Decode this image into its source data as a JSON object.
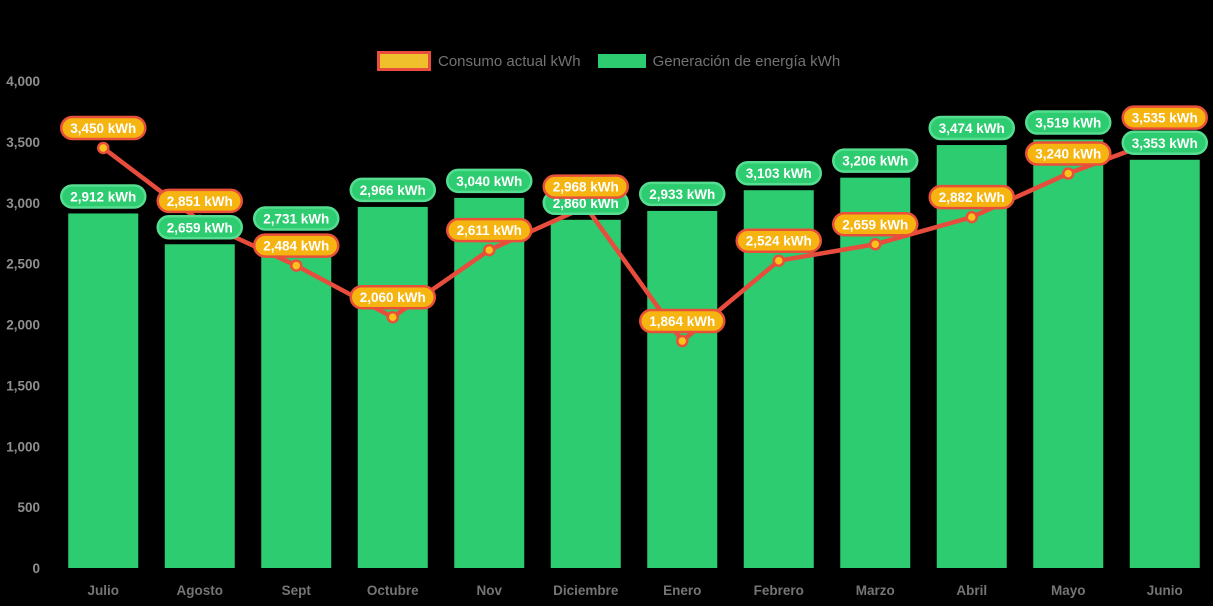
{
  "legend": {
    "consumption_label": "Consumo actual kWh",
    "generation_label": "Generación de energía kWh"
  },
  "y_axis": {
    "tick_labels": [
      "0",
      "500",
      "1,000",
      "1,500",
      "2,000",
      "2,500",
      "3,000",
      "3,500",
      "4,000"
    ],
    "step": 500,
    "min": 0,
    "max": 4000
  },
  "chart_data": {
    "type": "bar",
    "subtype": "bars-with-line-overlay",
    "title": "",
    "unit": "kWh",
    "categories": [
      "Julio",
      "Agosto",
      "Sept",
      "Octubre",
      "Nov",
      "Diciembre",
      "Enero",
      "Febrero",
      "Marzo",
      "Abril",
      "Mayo",
      "Junio"
    ],
    "series": [
      {
        "name": "Consumo actual kWh",
        "type": "line",
        "color": "#e74c3c",
        "values": [
          3450,
          2851,
          2484,
          2060,
          2611,
          2968,
          1864,
          2524,
          2659,
          2882,
          3240,
          3535
        ],
        "labels": [
          "3,450 kWh",
          "2,851 kWh",
          "2,484 kWh",
          "2,060 kWh",
          "2,611 kWh",
          "2,968 kWh",
          "1,864 kWh",
          "2,524 kWh",
          "2,659 kWh",
          "2,882 kWh",
          "3,240 kWh",
          "3,535 kWh"
        ]
      },
      {
        "name": "Generación de energía kWh",
        "type": "bar",
        "color": "#2ecc71",
        "values": [
          2912,
          2659,
          2731,
          2966,
          3040,
          2860,
          2933,
          3103,
          3206,
          3474,
          3519,
          3353
        ],
        "labels": [
          "2,912 kWh",
          "2,659 kWh",
          "2,731 kWh",
          "2,966 kWh",
          "3,040 kWh",
          "2,860 kWh",
          "2,933 kWh",
          "3,103 kWh",
          "3,206 kWh",
          "3,474 kWh",
          "3,519 kWh",
          "3,353 kWh"
        ]
      }
    ],
    "ylim": [
      0,
      4000
    ],
    "grid": false,
    "legend_position": "top",
    "data_label_suffix": " kWh"
  },
  "colors": {
    "background": "#000000",
    "bar_green": "#2ecc71",
    "green_pill_fill": "#2ecc71",
    "green_pill_border": "#55dd90",
    "line_red": "#e74c3c",
    "point_fill": "#fcc21b",
    "point_border": "#e8503a",
    "amber_pill_fill": "#f5b40f",
    "amber_pill_border": "#e8503a",
    "pill_text": "#ffffff",
    "axis_tick_text": "#8f8f8f",
    "month_text": "#757575",
    "legend_text": "#737373",
    "legend_consumption_fill": "#f0c02c",
    "legend_consumption_border": "#e74c3c",
    "legend_generation_fill": "#2ecc71"
  }
}
